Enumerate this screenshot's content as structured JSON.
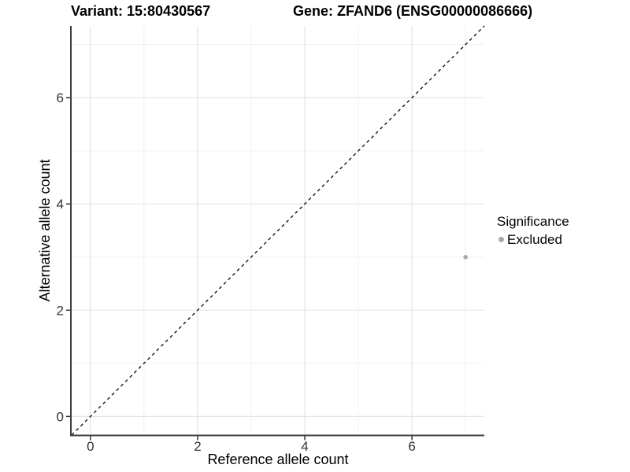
{
  "header": {
    "variant_title": "Variant: 15:80430567",
    "gene_title": "Gene: ZFAND6 (ENSG00000086666)"
  },
  "chart_data": {
    "type": "scatter",
    "xlabel": "Reference allele count",
    "ylabel": "Alternative allele count",
    "xlim": [
      -0.35,
      7.35
    ],
    "ylim": [
      -0.35,
      7.35
    ],
    "x_major_ticks": [
      0,
      2,
      4,
      6
    ],
    "x_minor_ticks": [
      1,
      3,
      5,
      7
    ],
    "y_major_ticks": [
      0,
      2,
      4,
      6
    ],
    "y_minor_ticks": [
      1,
      3,
      5,
      7
    ],
    "grid": "major+minor",
    "identity_line": {
      "style": "dashed",
      "color": "#141414",
      "from": [
        -0.35,
        -0.35
      ],
      "to": [
        7.35,
        7.35
      ]
    },
    "series": [
      {
        "name": "Excluded",
        "color": "#a9a9a9",
        "point_radius": 2.8,
        "points": [
          {
            "x": 7,
            "y": 3
          }
        ]
      }
    ],
    "legend": {
      "title": "Significance",
      "position": "right",
      "items": [
        {
          "label": "Excluded",
          "color": "#a9a9a9",
          "marker": "circle"
        }
      ]
    },
    "colors": {
      "background": "#ffffff",
      "grid_major": "#e4e4e4",
      "grid_minor": "#f0f0f0",
      "axis_line": "#3d3d3d",
      "tick_mark": "#333333",
      "tick_label": "#333333",
      "text": "#000000"
    }
  }
}
